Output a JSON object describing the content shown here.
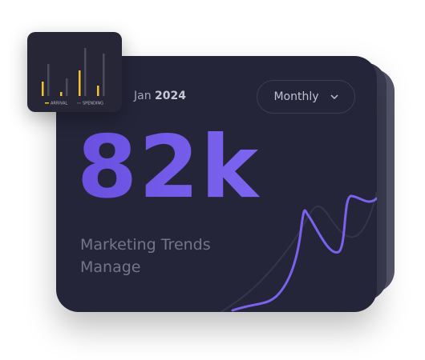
{
  "header": {
    "month": "Jan",
    "year": "2024"
  },
  "dropdown": {
    "label": "Monthly"
  },
  "metric": {
    "value": "82k",
    "caption": [
      "Marketing Trends",
      "Manage"
    ]
  },
  "mini_chart": {
    "type": "bar",
    "series": [
      {
        "name": "ARRIVAL",
        "color": "#f2c230",
        "values": [
          18,
          5,
          32,
          13
        ]
      },
      {
        "name": "SPENDING",
        "color": "#4b4b5e",
        "values": [
          40,
          22,
          60,
          53
        ]
      }
    ]
  }
}
